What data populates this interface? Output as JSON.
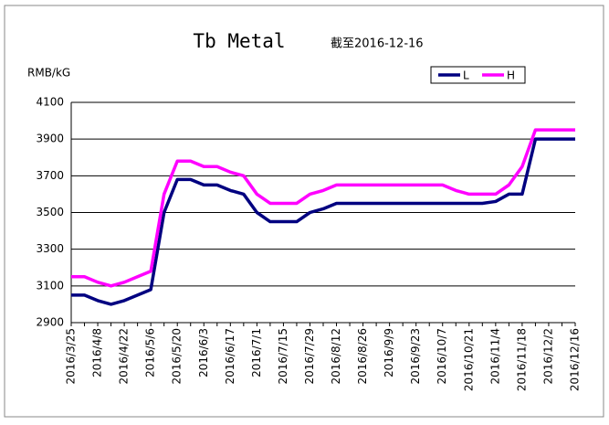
{
  "chart_data": {
    "type": "line",
    "title": "Tb Metal",
    "subtitle": "截至2016-12-16",
    "y_label": "RMB/kG",
    "categories": [
      "2016/3/25",
      null,
      "2016/4/8",
      null,
      "2016/4/22",
      null,
      "2016/5/6",
      null,
      "2016/5/20",
      null,
      "2016/6/3",
      null,
      "2016/6/17",
      null,
      "2016/7/1",
      null,
      "2016/7/15",
      null,
      "2016/7/29",
      null,
      "2016/8/12",
      null,
      "2016/8/26",
      null,
      "2016/9/9",
      null,
      "2016/9/23",
      null,
      "2016/10/7",
      null,
      "2016/10/21",
      null,
      "2016/11/4",
      null,
      "2016/11/18",
      null,
      "2016/12/2",
      null,
      "2016/12/16"
    ],
    "series": [
      {
        "name": "L",
        "color": "#000080",
        "values": [
          3050,
          3050,
          3020,
          3000,
          3020,
          3050,
          3080,
          3500,
          3680,
          3680,
          3650,
          3650,
          3620,
          3600,
          3500,
          3450,
          3450,
          3450,
          3500,
          3520,
          3550,
          3550,
          3550,
          3550,
          3550,
          3550,
          3550,
          3550,
          3550,
          3550,
          3550,
          3550,
          3560,
          3600,
          3600,
          3900,
          3900,
          3900,
          3900
        ]
      },
      {
        "name": "H",
        "color": "#ff00ff",
        "values": [
          3150,
          3150,
          3120,
          3100,
          3120,
          3150,
          3180,
          3600,
          3780,
          3780,
          3750,
          3750,
          3720,
          3700,
          3600,
          3550,
          3550,
          3550,
          3600,
          3620,
          3650,
          3650,
          3650,
          3650,
          3650,
          3650,
          3650,
          3650,
          3650,
          3620,
          3600,
          3600,
          3600,
          3650,
          3750,
          3950,
          3950,
          3950,
          3950
        ]
      }
    ],
    "ylim": [
      2900,
      4100
    ],
    "yticks": [
      2900,
      3100,
      3300,
      3500,
      3700,
      3900,
      4100
    ],
    "grid": true,
    "legend": "top-right"
  }
}
